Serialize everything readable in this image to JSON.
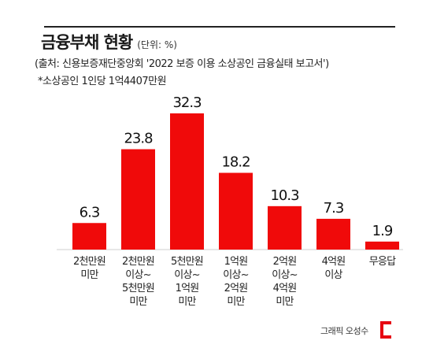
{
  "header": {
    "title": "금융부채 현황",
    "unit": "(단위: %)",
    "source": "(출처: 신용보증재단중앙회 '2022 보증 이용 소상공인 금융실태 보고서')",
    "note": "*소상공인 1인당 1억4407만원"
  },
  "credit": {
    "text": "그래픽 오성수",
    "icon": "red-bracket-logo"
  },
  "colors": {
    "bar": "#f00a0a",
    "baseline": "#cfcfcf"
  },
  "chart_data": {
    "type": "bar",
    "title": "금융부채 현황",
    "xlabel": "",
    "ylabel": "",
    "ylim": [
      0,
      32.3
    ],
    "categories": [
      "2천만원\n미만",
      "2천만원\n이상~\n5천만원\n미만",
      "5천만원\n이상~\n1억원\n미만",
      "1억원\n이상~\n2억원\n미만",
      "2억원\n이상~\n4억원\n미만",
      "4억원\n이상",
      "무응답"
    ],
    "values": [
      6.3,
      23.8,
      32.3,
      18.2,
      10.3,
      7.3,
      1.9
    ],
    "value_labels": [
      "6.3",
      "23.8",
      "32.3",
      "18.2",
      "10.3",
      "7.3",
      "1.9"
    ]
  }
}
